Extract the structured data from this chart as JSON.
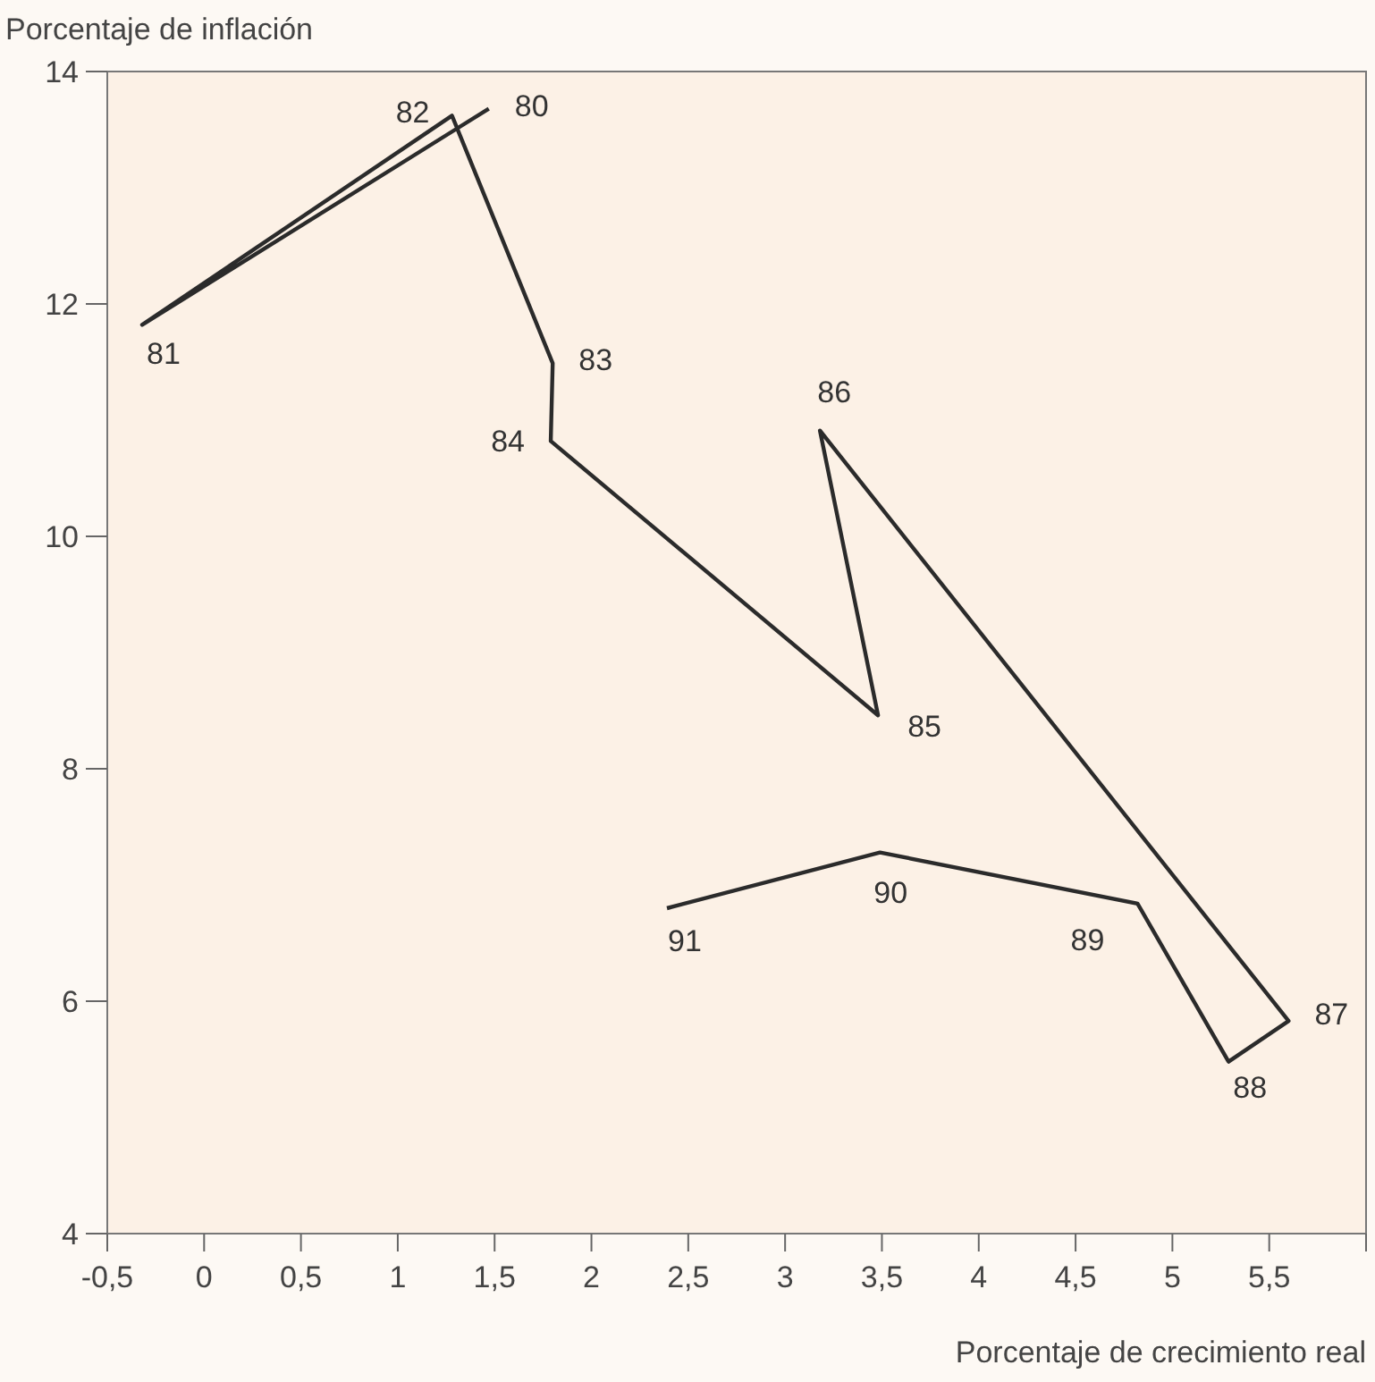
{
  "chart_data": {
    "type": "line",
    "xlabel": "Porcentaje de crecimiento real",
    "ylabel": "Porcentaje de inflación",
    "x": [
      1.47,
      -0.32,
      1.28,
      1.8,
      1.79,
      3.48,
      3.18,
      5.6,
      5.29,
      4.82,
      3.49,
      2.39
    ],
    "values": [
      13.68,
      11.82,
      13.62,
      11.49,
      10.82,
      8.46,
      10.91,
      5.83,
      5.48,
      6.84,
      7.28,
      6.8
    ],
    "annotations": [
      {
        "text": "80",
        "x": 1.47,
        "y": 13.68
      },
      {
        "text": "81",
        "x": -0.32,
        "y": 11.82
      },
      {
        "text": "82",
        "x": 1.28,
        "y": 13.62
      },
      {
        "text": "83",
        "x": 1.8,
        "y": 11.49
      },
      {
        "text": "84",
        "x": 1.79,
        "y": 10.82
      },
      {
        "text": "85",
        "x": 3.48,
        "y": 8.46
      },
      {
        "text": "86",
        "x": 3.18,
        "y": 10.91
      },
      {
        "text": "87",
        "x": 5.6,
        "y": 5.83
      },
      {
        "text": "88",
        "x": 5.29,
        "y": 5.48
      },
      {
        "text": "89",
        "x": 4.82,
        "y": 6.84
      },
      {
        "text": "90",
        "x": 3.49,
        "y": 7.28
      },
      {
        "text": "91",
        "x": 2.39,
        "y": 6.8
      }
    ],
    "color": "#2b2b2b",
    "marker": "none",
    "line_style": "solid",
    "grid": false,
    "xlim": [
      -0.5,
      6
    ],
    "ylim": [
      4,
      14
    ],
    "xticks": [
      {
        "value": -0.5,
        "label": "-0,5"
      },
      0,
      {
        "value": 0.5,
        "label": "0,5"
      },
      1,
      {
        "value": 1.5,
        "label": "1,5"
      },
      2,
      {
        "value": 2.5,
        "label": "2,5"
      },
      3,
      {
        "value": 3.5,
        "label": "3,5"
      },
      4,
      {
        "value": 4.5,
        "label": "4,5"
      },
      5,
      {
        "value": 5.5,
        "label": "5,5"
      },
      {
        "value": 6,
        "label": null
      }
    ],
    "yticks": [
      4,
      6,
      8,
      10,
      12,
      14
    ]
  }
}
